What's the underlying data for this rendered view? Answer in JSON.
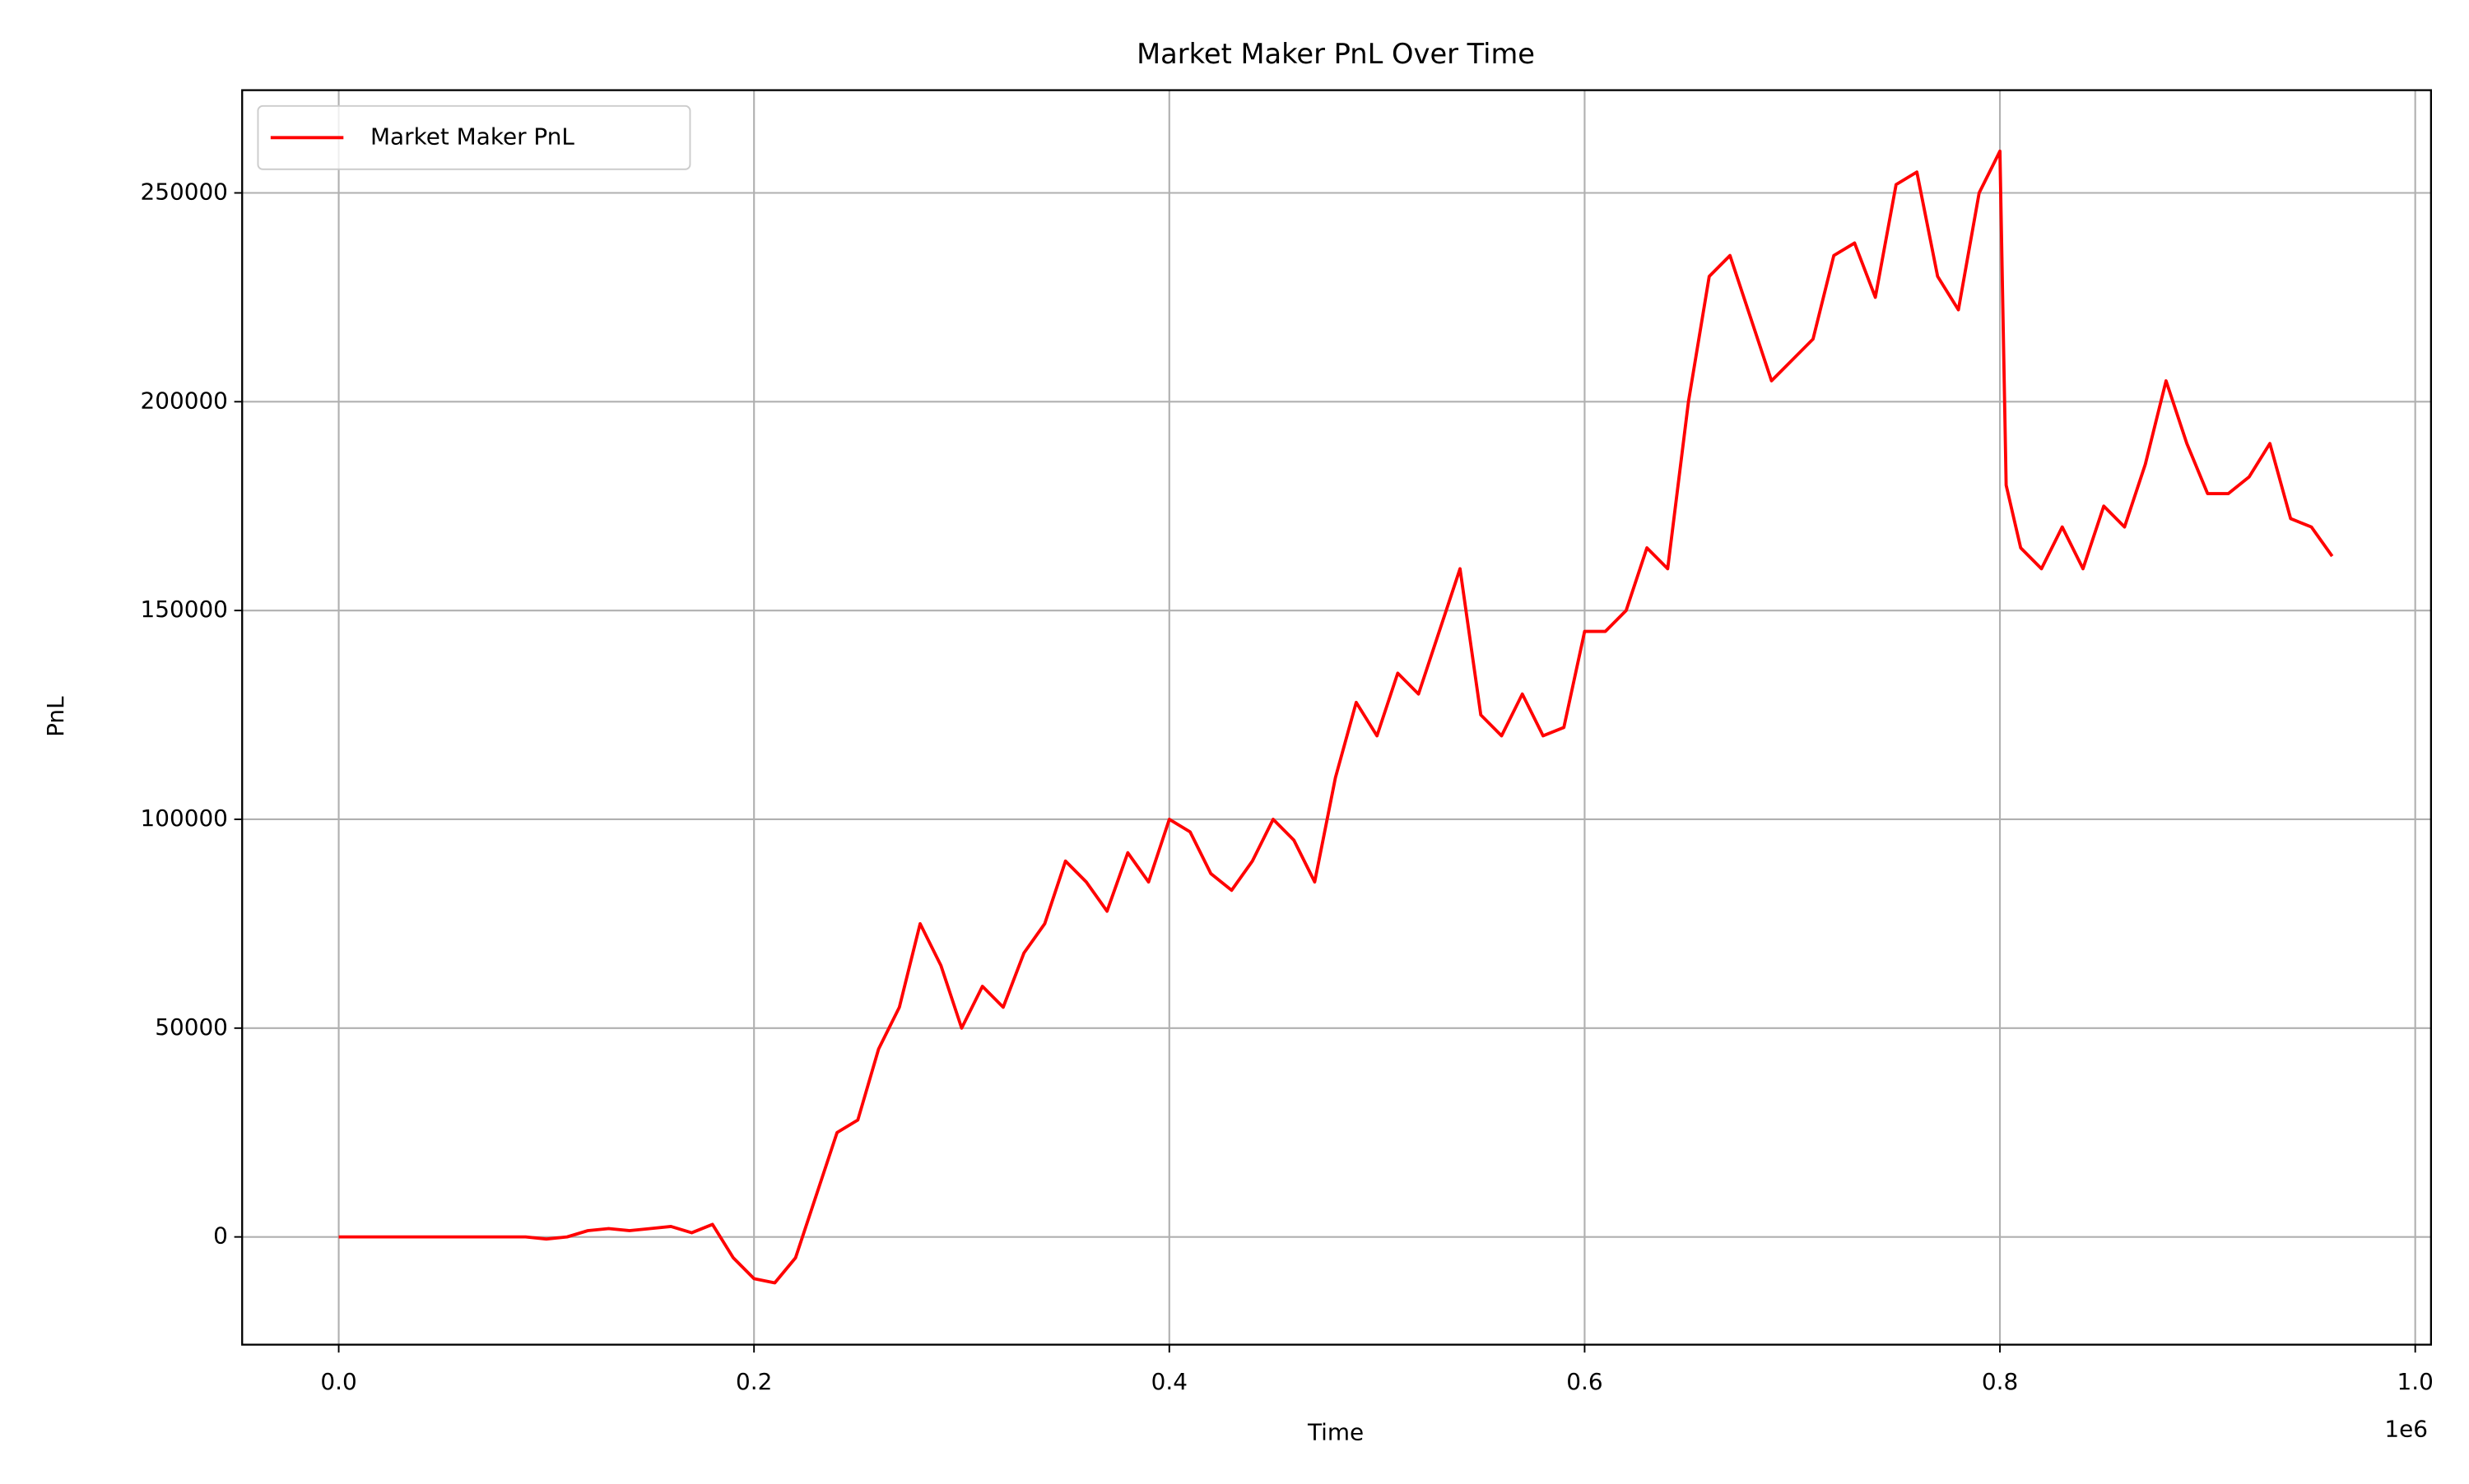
{
  "chart_data": {
    "type": "line",
    "title": "Market Maker PnL Over Time",
    "x_label": "Time",
    "y_label": "PnL",
    "x_offset_label": "1e6",
    "x": [
      0,
      0.01,
      0.02,
      0.03,
      0.04,
      0.05,
      0.06,
      0.07,
      0.08,
      0.09,
      0.1,
      0.11,
      0.12,
      0.13,
      0.14,
      0.15,
      0.16,
      0.17,
      0.18,
      0.19,
      0.2,
      0.21,
      0.22,
      0.23,
      0.24,
      0.25,
      0.26,
      0.27,
      0.28,
      0.29,
      0.3,
      0.31,
      0.32,
      0.33,
      0.34,
      0.35,
      0.36,
      0.37,
      0.38,
      0.39,
      0.4,
      0.41,
      0.42,
      0.43,
      0.44,
      0.45,
      0.46,
      0.47,
      0.48,
      0.49,
      0.5,
      0.51,
      0.52,
      0.53,
      0.54,
      0.55,
      0.56,
      0.57,
      0.58,
      0.59,
      0.6,
      0.61,
      0.62,
      0.63,
      0.64,
      0.65,
      0.66,
      0.67,
      0.68,
      0.69,
      0.7,
      0.71,
      0.72,
      0.73,
      0.74,
      0.75,
      0.76,
      0.77,
      0.78,
      0.79,
      0.8,
      0.803,
      0.81,
      0.82,
      0.83,
      0.84,
      0.85,
      0.86,
      0.87,
      0.88,
      0.89,
      0.9,
      0.91,
      0.92,
      0.93,
      0.94,
      0.95,
      0.96
    ],
    "series": [
      {
        "name": "Market Maker PnL",
        "color": "#ff0000",
        "values": [
          0,
          0,
          0,
          0,
          0,
          0,
          0,
          0,
          0,
          0,
          -500,
          0,
          1500,
          2000,
          1500,
          2000,
          2500,
          1000,
          3000,
          -5000,
          -10000,
          -11000,
          -5000,
          10000,
          25000,
          28000,
          45000,
          55000,
          75000,
          65000,
          50000,
          60000,
          55000,
          68000,
          75000,
          90000,
          85000,
          78000,
          92000,
          85000,
          100000,
          97000,
          87000,
          83000,
          90000,
          100000,
          95000,
          85000,
          110000,
          128000,
          120000,
          135000,
          130000,
          145000,
          160000,
          125000,
          120000,
          130000,
          120000,
          122000,
          145000,
          145000,
          150000,
          165000,
          160000,
          200000,
          230000,
          235000,
          220000,
          205000,
          210000,
          215000,
          235000,
          238000,
          225000,
          252000,
          255000,
          230000,
          222000,
          250000,
          260000,
          180000,
          165000,
          160000,
          170000,
          160000,
          175000,
          170000,
          185000,
          205000,
          190000,
          178000,
          178000,
          182000,
          190000,
          172000,
          170000,
          163000
        ]
      }
    ],
    "xlim": [
      -0.0465,
      1.0076
    ],
    "ylim": [
      -25800,
      274600
    ],
    "xticks": [
      {
        "value": 0,
        "label": "0.0"
      },
      0.2,
      0.4,
      0.6,
      0.8,
      {
        "value": 1,
        "label": "1.0"
      }
    ],
    "yticks": [
      0,
      50000,
      100000,
      150000,
      200000,
      250000
    ],
    "grid": true,
    "legend": "upper left"
  }
}
